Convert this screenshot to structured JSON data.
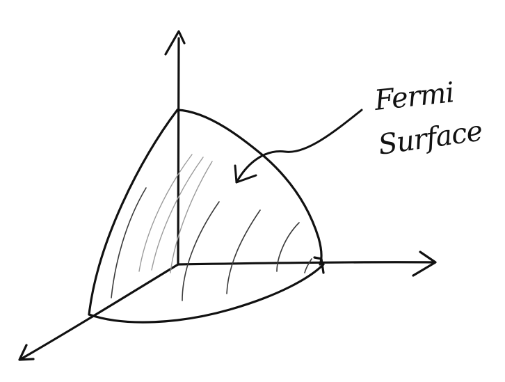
{
  "annotation": {
    "line1": "Fermi",
    "line2": "Surface"
  },
  "colors": {
    "ink": "#111111",
    "background": "#ffffff"
  }
}
